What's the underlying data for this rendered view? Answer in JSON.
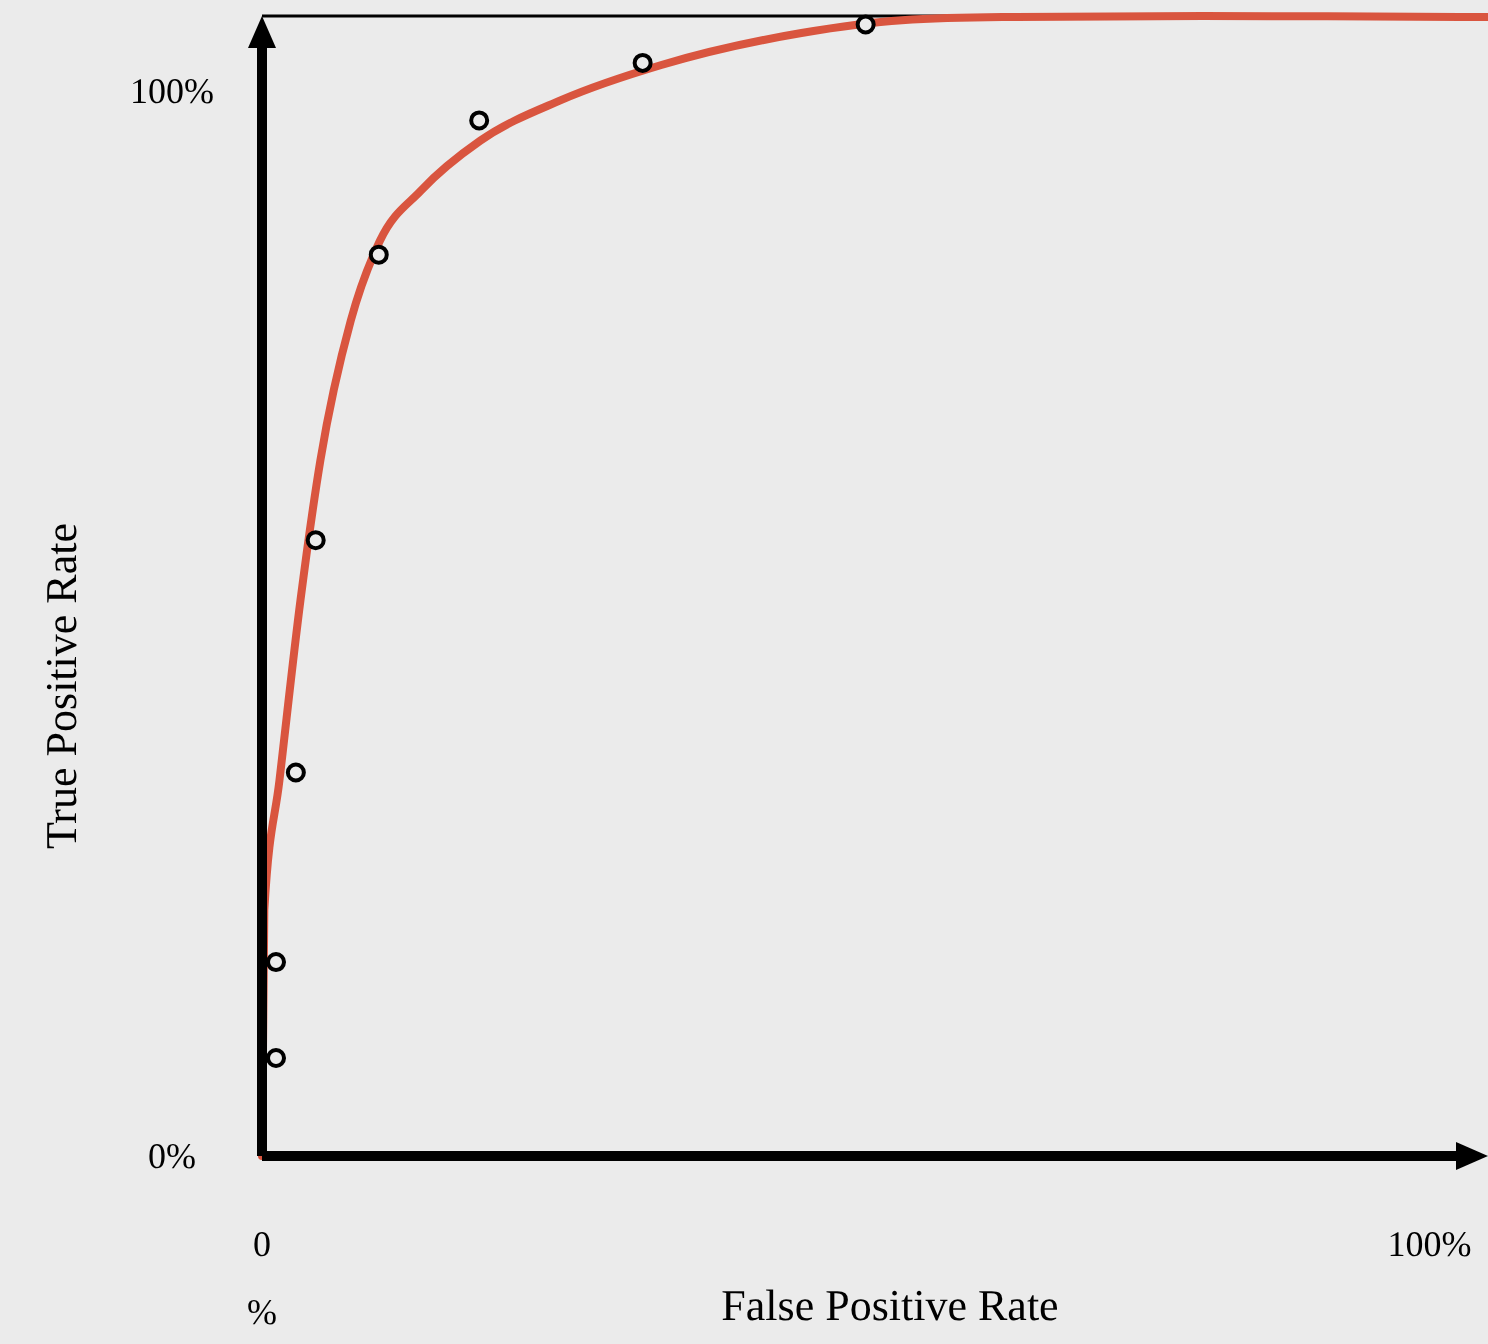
{
  "chart_data": {
    "type": "scatter",
    "xlabel": "False Positive Rate",
    "ylabel": "True Positive Rate",
    "xlim": [
      0,
      105
    ],
    "ylim": [
      0,
      107
    ],
    "xticks": [
      {
        "value": 0,
        "label": "0\n%"
      },
      {
        "value": 100,
        "label": "100%"
      }
    ],
    "yticks": [
      {
        "value": 0,
        "label": "0%"
      },
      {
        "value": 100,
        "label": "100%"
      }
    ],
    "grid": false,
    "series": [
      {
        "color": "#000000",
        "marker": "circle",
        "x": [
          1.2,
          1.2,
          2.9,
          4.6,
          10.0,
          18.6,
          32.6,
          51.7
        ],
        "values": [
          9.2,
          18.2,
          36.0,
          57.8,
          84.6,
          97.2,
          102.6,
          106.2
        ]
      },
      {
        "type": "line",
        "color": "#d9553f",
        "line_style": "solid",
        "x": [
          0,
          0.2,
          1.5,
          3.3,
          5.0,
          7.6,
          10.1,
          13.6,
          18.7,
          25.6,
          34.2,
          46.2,
          54.8,
          63.4,
          80.6,
          105
        ],
        "values": [
          0,
          23.1,
          35.3,
          52.2,
          65.3,
          78.4,
          85.9,
          90.6,
          95.3,
          99.1,
          102.4,
          105.4,
          106.6,
          106.9,
          107,
          106.9
        ]
      }
    ]
  }
}
